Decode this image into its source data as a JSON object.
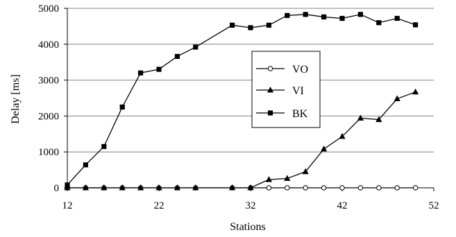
{
  "chart_data": {
    "type": "line",
    "xlabel": "Stations",
    "ylabel": "Delay [ms]",
    "xlim": [
      12,
      52
    ],
    "ylim": [
      0,
      5000
    ],
    "x_ticks": [
      12,
      22,
      32,
      42,
      52
    ],
    "y_ticks": [
      0,
      1000,
      2000,
      3000,
      4000,
      5000
    ],
    "grid": "horizontal",
    "legend_position": "center-right",
    "series": [
      {
        "name": "VO",
        "marker": "circle",
        "x": [
          12,
          14,
          16,
          18,
          20,
          22,
          24,
          26,
          30,
          32,
          34,
          36,
          38,
          40,
          42,
          44,
          46,
          48,
          50
        ],
        "values": [
          0,
          0,
          0,
          0,
          0,
          0,
          0,
          0,
          0,
          0,
          0,
          0,
          0,
          0,
          0,
          0,
          0,
          0,
          0
        ]
      },
      {
        "name": "VI",
        "marker": "triangle",
        "x": [
          12,
          14,
          16,
          18,
          20,
          22,
          24,
          26,
          30,
          32,
          34,
          36,
          38,
          40,
          42,
          44,
          46,
          48,
          50
        ],
        "values": [
          0,
          0,
          0,
          0,
          0,
          0,
          0,
          0,
          0,
          0,
          230,
          260,
          450,
          1080,
          1430,
          1940,
          1900,
          2480,
          2670
        ]
      },
      {
        "name": "BK",
        "marker": "square",
        "x": [
          12,
          14,
          16,
          18,
          20,
          22,
          24,
          26,
          30,
          32,
          34,
          36,
          38,
          40,
          42,
          44,
          46,
          48,
          50
        ],
        "values": [
          80,
          640,
          1150,
          2250,
          3200,
          3300,
          3660,
          3920,
          4530,
          4460,
          4530,
          4800,
          4830,
          4760,
          4720,
          4830,
          4600,
          4720,
          4540
        ]
      }
    ]
  }
}
